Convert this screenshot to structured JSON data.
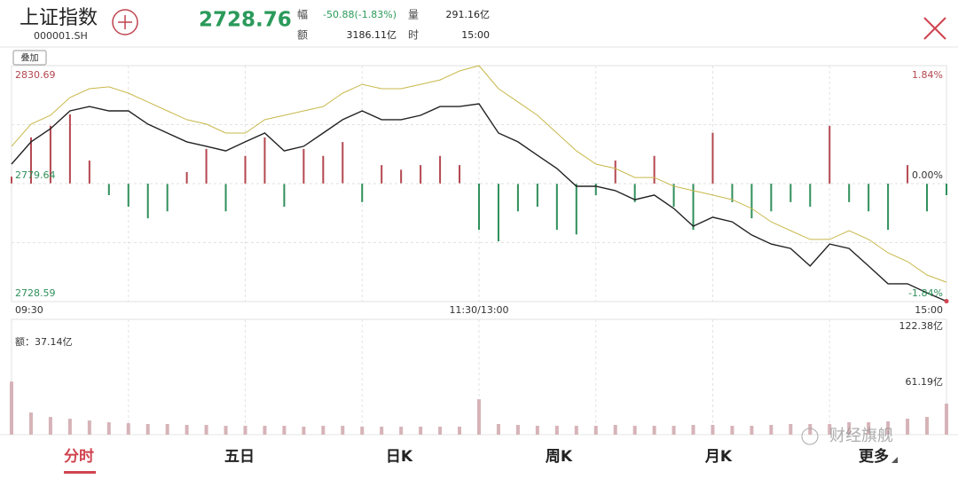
{
  "header": {
    "name": "上证指数",
    "code": "000001.SH",
    "price": "2728.76",
    "change_label": "幅",
    "change": "-50.88(-1.83%)",
    "volume_label": "量",
    "volume": "291.16亿",
    "amount_label": "额",
    "amount": "3186.11亿",
    "time_label": "时",
    "time": "15:00"
  },
  "overlay_button": "叠加",
  "chart_data": [
    {
      "type": "line",
      "xlim": [
        0,
        240
      ],
      "xticks": [
        {
          "value": 0,
          "label": "09:30"
        },
        {
          "value": 120,
          "label": "11:30/13:00"
        },
        {
          "value": 240,
          "label": "15:00"
        }
      ],
      "x": [
        0,
        5,
        10,
        15,
        20,
        25,
        30,
        35,
        40,
        45,
        50,
        55,
        60,
        65,
        70,
        75,
        80,
        85,
        90,
        95,
        100,
        105,
        110,
        115,
        120,
        125,
        130,
        135,
        140,
        145,
        150,
        155,
        160,
        165,
        170,
        175,
        180,
        185,
        190,
        195,
        200,
        205,
        210,
        215,
        220,
        225,
        230,
        235,
        240
      ],
      "ylim": [
        2728.59,
        2830.69
      ],
      "yticks": [
        {
          "value": 2830.69,
          "label": "2830.69"
        },
        {
          "value": 2779.64,
          "label": "2779.64"
        },
        {
          "value": 2728.59,
          "label": "2728.59"
        }
      ],
      "y2lim": [
        -1.84,
        1.84
      ],
      "y2ticks": [
        {
          "value": 1.84,
          "label": "1.84%"
        },
        {
          "value": 0,
          "label": "0.00%"
        },
        {
          "value": -1.84,
          "label": "-1.84%"
        }
      ],
      "grid": true,
      "series": [
        {
          "color": "#222222",
          "values": [
            2788.1,
            2797.7,
            2803.4,
            2811.1,
            2813.0,
            2811.1,
            2811.1,
            2805.4,
            2801.5,
            2797.7,
            2795.8,
            2793.8,
            2797.7,
            2801.5,
            2793.8,
            2795.8,
            2801.5,
            2807.3,
            2811.1,
            2807.3,
            2807.3,
            2809.2,
            2813.0,
            2813.0,
            2814.2,
            2801.5,
            2797.7,
            2791.9,
            2786.2,
            2778.5,
            2778.5,
            2776.6,
            2772.7,
            2774.7,
            2768.9,
            2761.2,
            2765.1,
            2763.1,
            2757.4,
            2753.5,
            2751.6,
            2744.0,
            2753.5,
            2751.6,
            2744.0,
            2736.3,
            2736.3,
            2732.4,
            2728.76
          ]
        },
        {
          "color": "#c8b84a",
          "values": [
            2795.8,
            2805.4,
            2809.2,
            2816.9,
            2820.7,
            2821.5,
            2818.8,
            2815.0,
            2811.1,
            2807.3,
            2805.4,
            2801.5,
            2801.5,
            2807.3,
            2809.2,
            2811.1,
            2813.0,
            2818.8,
            2822.6,
            2820.7,
            2820.7,
            2822.6,
            2824.5,
            2828.4,
            2830.7,
            2820.7,
            2815.0,
            2809.2,
            2801.5,
            2793.8,
            2788.1,
            2786.2,
            2782.3,
            2782.3,
            2778.5,
            2776.6,
            2774.7,
            2772.7,
            2768.9,
            2763.1,
            2759.3,
            2755.5,
            2755.5,
            2759.3,
            2755.5,
            2749.7,
            2745.9,
            2740.1,
            2737.0
          ]
        }
      ]
    },
    {
      "type": "bar",
      "ylim": [
        -51.05,
        51.05
      ],
      "up_color": "#b4464f",
      "down_color": "#2f8f5a",
      "values": [
        3,
        20,
        25,
        30,
        10,
        -5,
        -10,
        -15,
        -12,
        5,
        15,
        -12,
        12,
        20,
        -10,
        15,
        12,
        18,
        -8,
        8,
        6,
        8,
        12,
        8,
        -20,
        -25,
        -12,
        -10,
        -20,
        -22,
        -5,
        10,
        -8,
        12,
        -10,
        -20,
        22,
        -8,
        -15,
        -12,
        -8,
        -10,
        25,
        -8,
        -12,
        -20,
        8,
        -12,
        -5
      ]
    },
    {
      "type": "bar",
      "annotation": "额：37.14亿",
      "ylim": [
        0,
        122.38
      ],
      "yticks": [
        {
          "value": 122.38,
          "label": "122.38亿"
        },
        {
          "value": 61.19,
          "label": "61.19亿"
        }
      ],
      "color": "#d6b3b8",
      "values": [
        60,
        25,
        20,
        18,
        16,
        14,
        13,
        12,
        12,
        11,
        11,
        10,
        10,
        10,
        10,
        9,
        10,
        10,
        9,
        9,
        9,
        9,
        9,
        9,
        40,
        12,
        11,
        10,
        10,
        10,
        10,
        11,
        10,
        10,
        10,
        11,
        11,
        10,
        10,
        11,
        12,
        12,
        12,
        14,
        14,
        15,
        18,
        20,
        35
      ]
    }
  ],
  "tabs": [
    "分时",
    "五日",
    "日K",
    "周K",
    "月K",
    "更多"
  ],
  "watermark": "财经旗舰"
}
